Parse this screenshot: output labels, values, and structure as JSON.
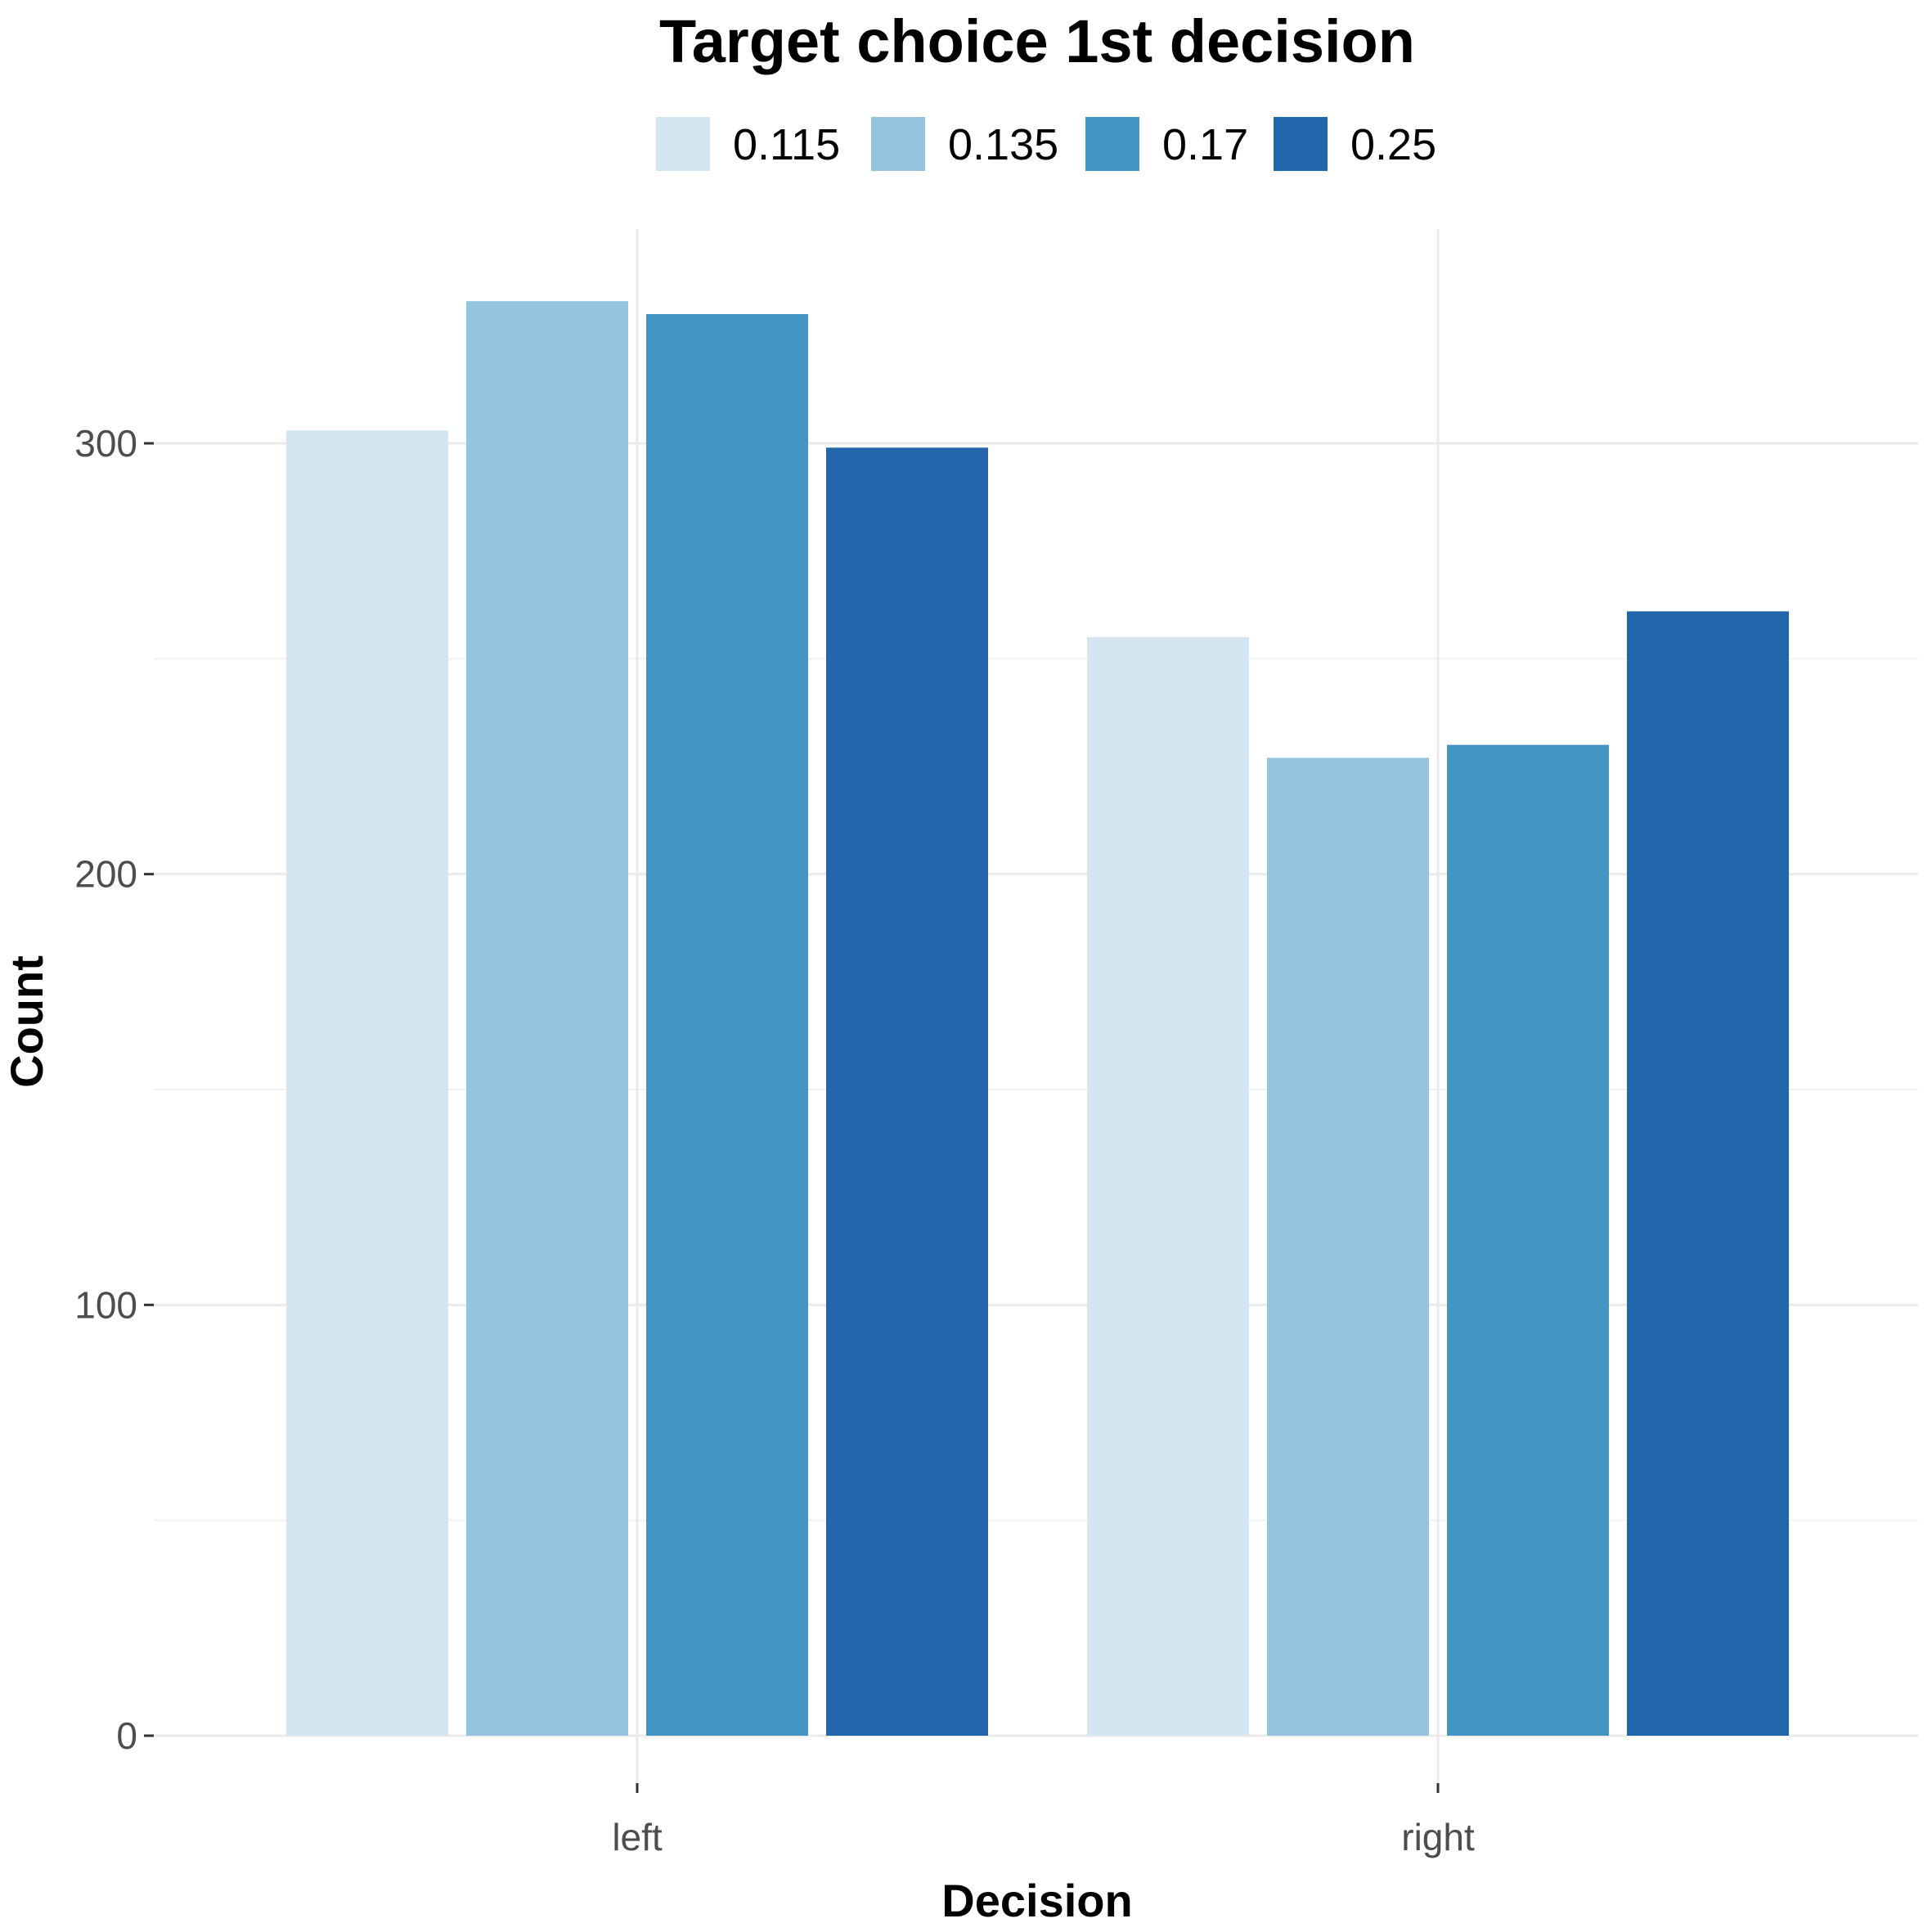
{
  "chart_data": {
    "type": "bar",
    "title": "Target choice 1st decision",
    "xlabel": "Decision",
    "ylabel": "Count",
    "categories": [
      "left",
      "right"
    ],
    "series": [
      {
        "name": "0.115",
        "color": "#d4e6f1",
        "values": [
          303,
          255
        ]
      },
      {
        "name": "0.135",
        "color": "#94c4de",
        "values": [
          333,
          227
        ]
      },
      {
        "name": "0.17",
        "color": "#4494c4",
        "values": [
          330,
          230
        ]
      },
      {
        "name": "0.25",
        "color": "#2265aa",
        "values": [
          299,
          261
        ]
      }
    ],
    "ylim": [
      0,
      340
    ],
    "yticks": [
      0,
      100,
      200,
      300
    ],
    "grid": true,
    "legend_position": "top"
  }
}
